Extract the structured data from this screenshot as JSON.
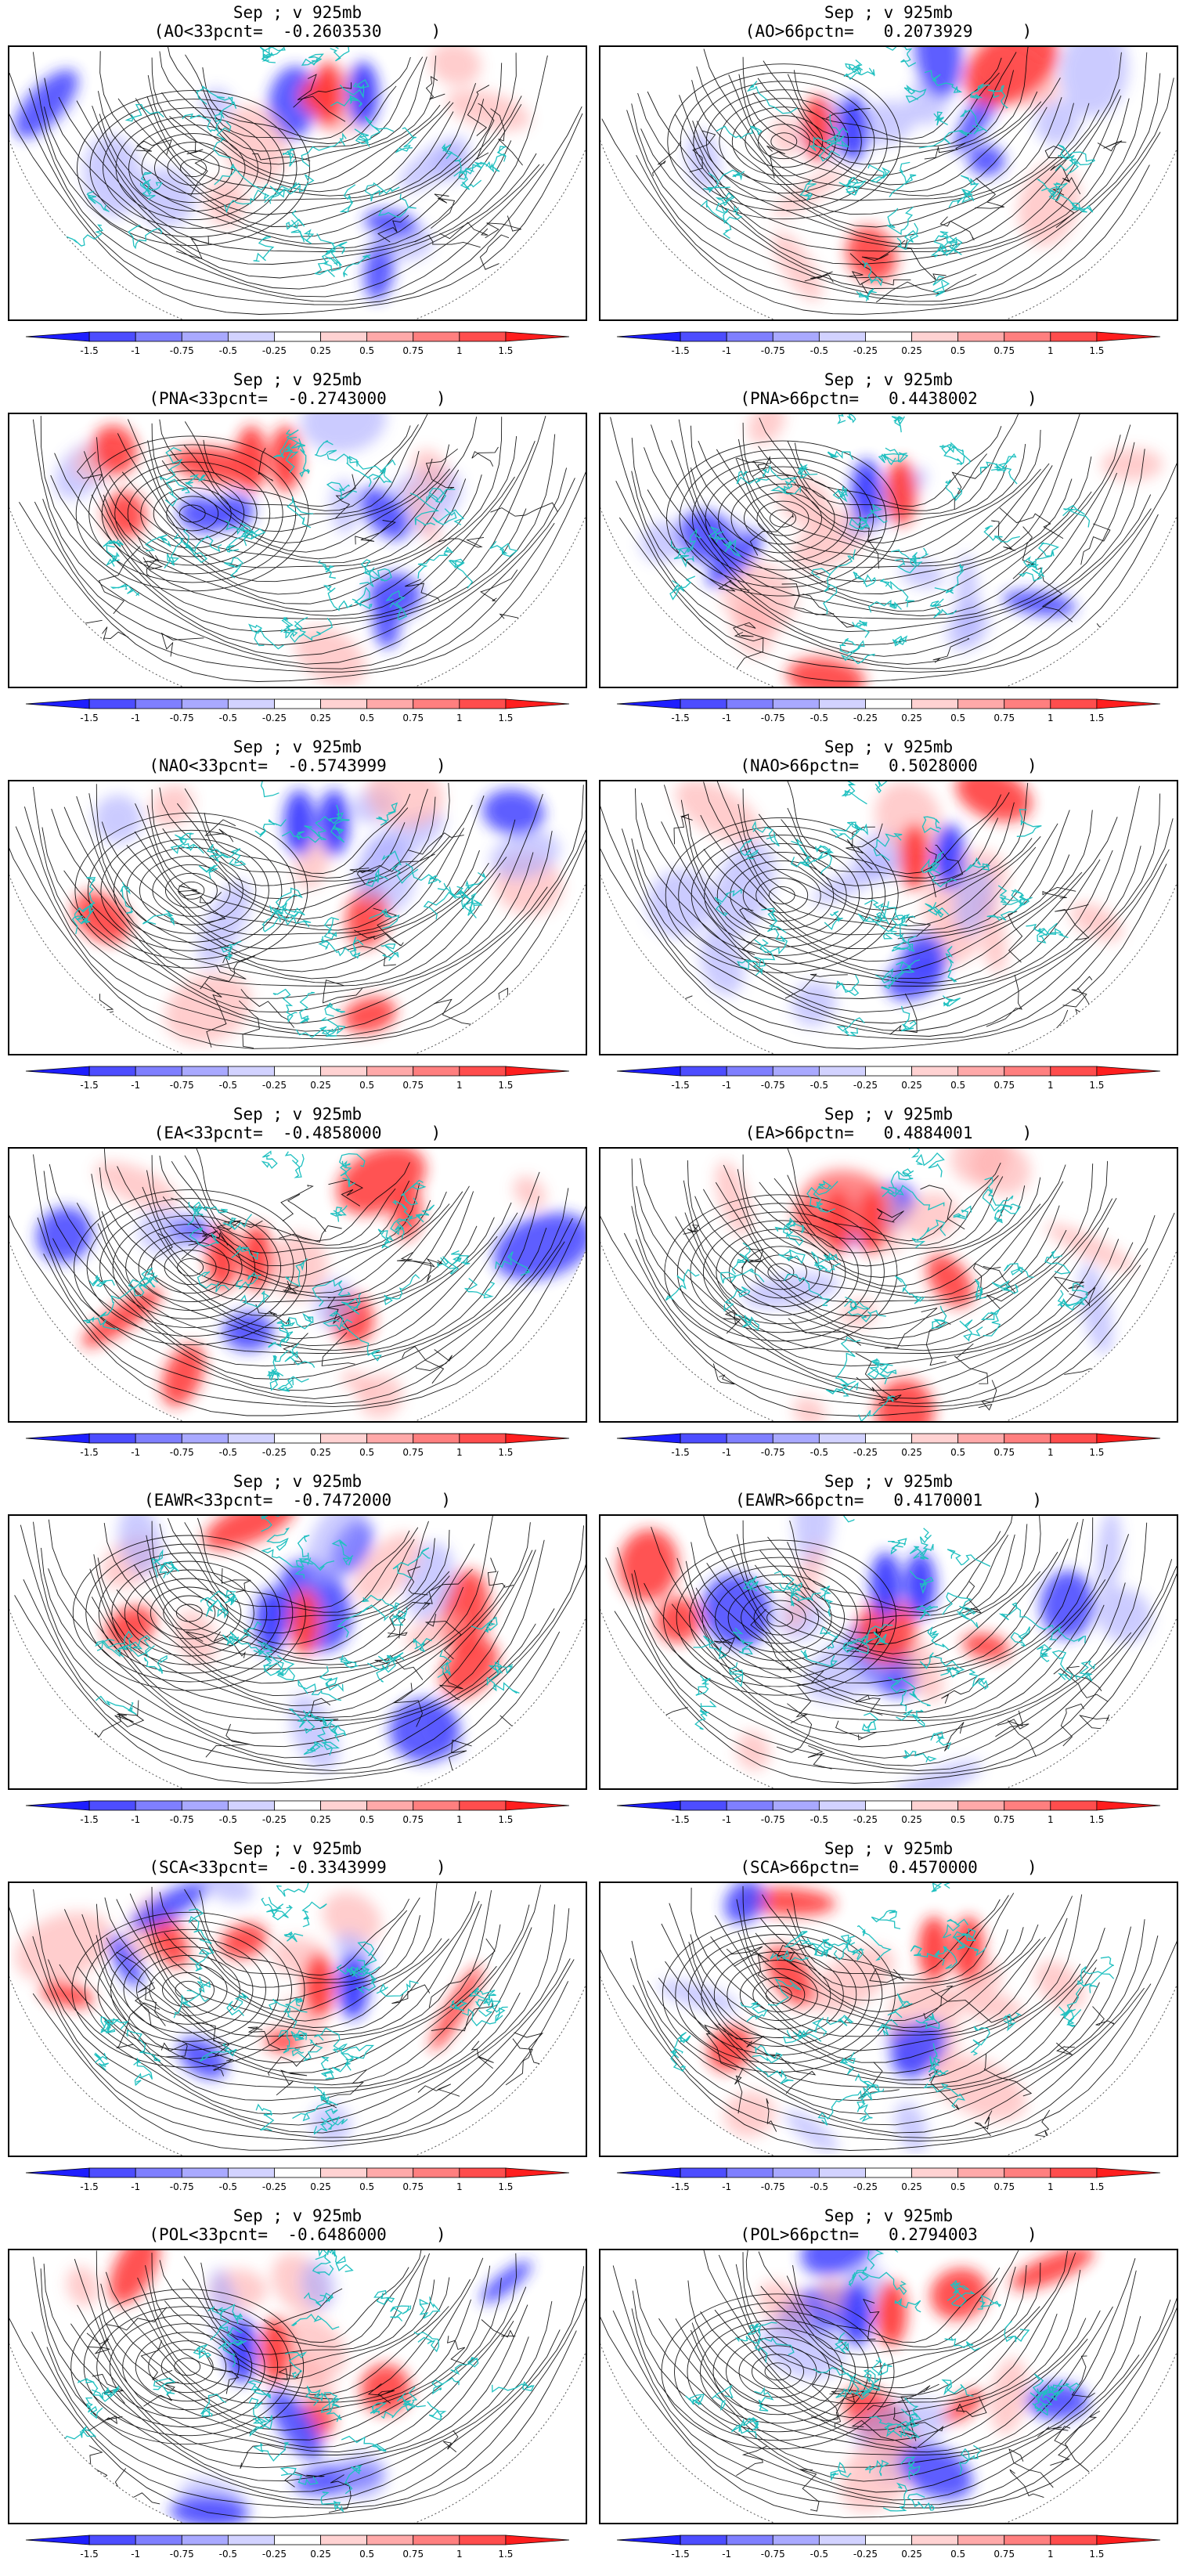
{
  "panels": [
    {
      "title": "Sep ; v 925mb",
      "subtitle": "(AO<33pcnt=  -0.2603530     )"
    },
    {
      "title": "Sep ; v 925mb",
      "subtitle": "(AO>66pctn=   0.2073929     )"
    },
    {
      "title": "Sep ; v 925mb",
      "subtitle": "(PNA<33pcnt=  -0.2743000     )"
    },
    {
      "title": "Sep ; v 925mb",
      "subtitle": "(PNA>66pctn=   0.4438002     )"
    },
    {
      "title": "Sep ; v 925mb",
      "subtitle": "(NAO<33pcnt=  -0.5743999     )"
    },
    {
      "title": "Sep ; v 925mb",
      "subtitle": "(NAO>66pctn=   0.5028000     )"
    },
    {
      "title": "Sep ; v 925mb",
      "subtitle": "(EA<33pcnt=  -0.4858000     )"
    },
    {
      "title": "Sep ; v 925mb",
      "subtitle": "(EA>66pctn=   0.4884001     )"
    },
    {
      "title": "Sep ; v 925mb",
      "subtitle": "(EAWR<33pcnt=  -0.7472000     )"
    },
    {
      "title": "Sep ; v 925mb",
      "subtitle": "(EAWR>66pctn=   0.4170001     )"
    },
    {
      "title": "Sep ; v 925mb",
      "subtitle": "(SCA<33pcnt=  -0.3343999     )"
    },
    {
      "title": "Sep ; v 925mb",
      "subtitle": "(SCA>66pctn=   0.4570000     )"
    },
    {
      "title": "Sep ; v 925mb",
      "subtitle": "(POL<33pcnt=  -0.6486000     )"
    },
    {
      "title": "Sep ; v 925mb",
      "subtitle": "(POL>66pctn=   0.2794003     )"
    }
  ],
  "colorbar": {
    "labels": [
      "-1.5",
      "-1",
      "-0.75",
      "-0.5",
      "-0.25",
      "0.25",
      "0.5",
      "0.75",
      "1",
      "1.5"
    ],
    "colors": [
      "#1e1eff",
      "#4d4dff",
      "#7f7fff",
      "#a9a9ff",
      "#d2d2ff",
      "#ffffff",
      "#ffd2d2",
      "#ffa9a9",
      "#ff7f7f",
      "#ff4d4d",
      "#ff1e1e"
    ]
  },
  "style": {
    "coast_color": "#20c0c0",
    "stream_color": "#000000",
    "neg_color": "#3333ff",
    "pos_color": "#ff2020"
  }
}
